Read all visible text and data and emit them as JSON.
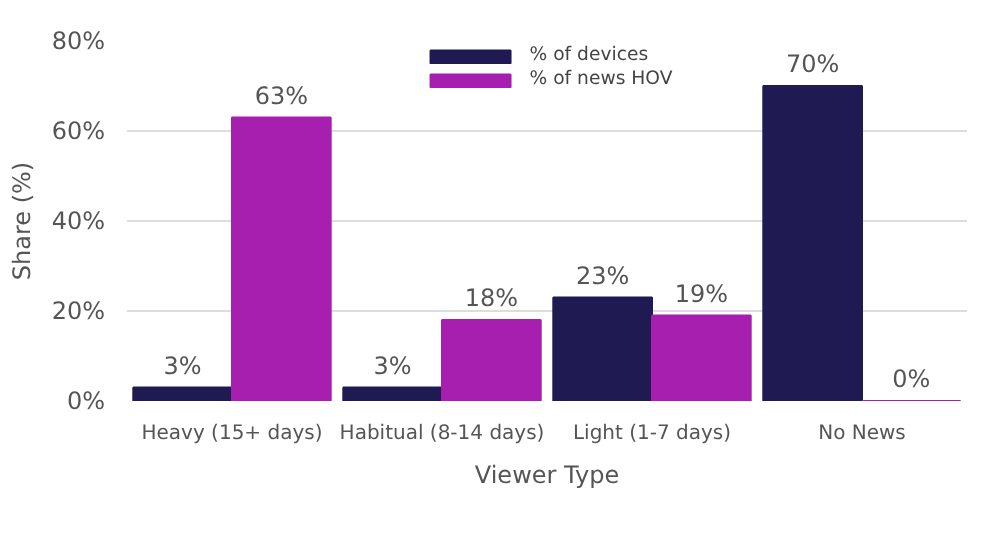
{
  "chart_data": {
    "type": "bar",
    "xlabel": "Viewer Type",
    "ylabel": "Share (%)",
    "categories": [
      "Heavy (15+ days)",
      "Habitual (8-14 days)",
      "Light (1-7 days)",
      "No News"
    ],
    "series": [
      {
        "name": "% of devices",
        "color": "#1f1a52",
        "values": [
          3,
          3,
          23,
          70
        ],
        "value_labels": [
          "3%",
          "3%",
          "23%",
          "70%"
        ]
      },
      {
        "name": "% of news HOV",
        "color": "#a61fae",
        "values": [
          63,
          18,
          19,
          0
        ],
        "value_labels": [
          "63%",
          "18%",
          "19%",
          "0%"
        ]
      }
    ],
    "ylim": [
      0,
      80
    ],
    "yticks": [
      {
        "value": 0,
        "label": "0%"
      },
      {
        "value": 20,
        "label": "20%"
      },
      {
        "value": 40,
        "label": "40%"
      },
      {
        "value": 60,
        "label": "60%"
      },
      {
        "value": 80,
        "label": "80%"
      }
    ],
    "grid": "y",
    "legend": "top"
  }
}
